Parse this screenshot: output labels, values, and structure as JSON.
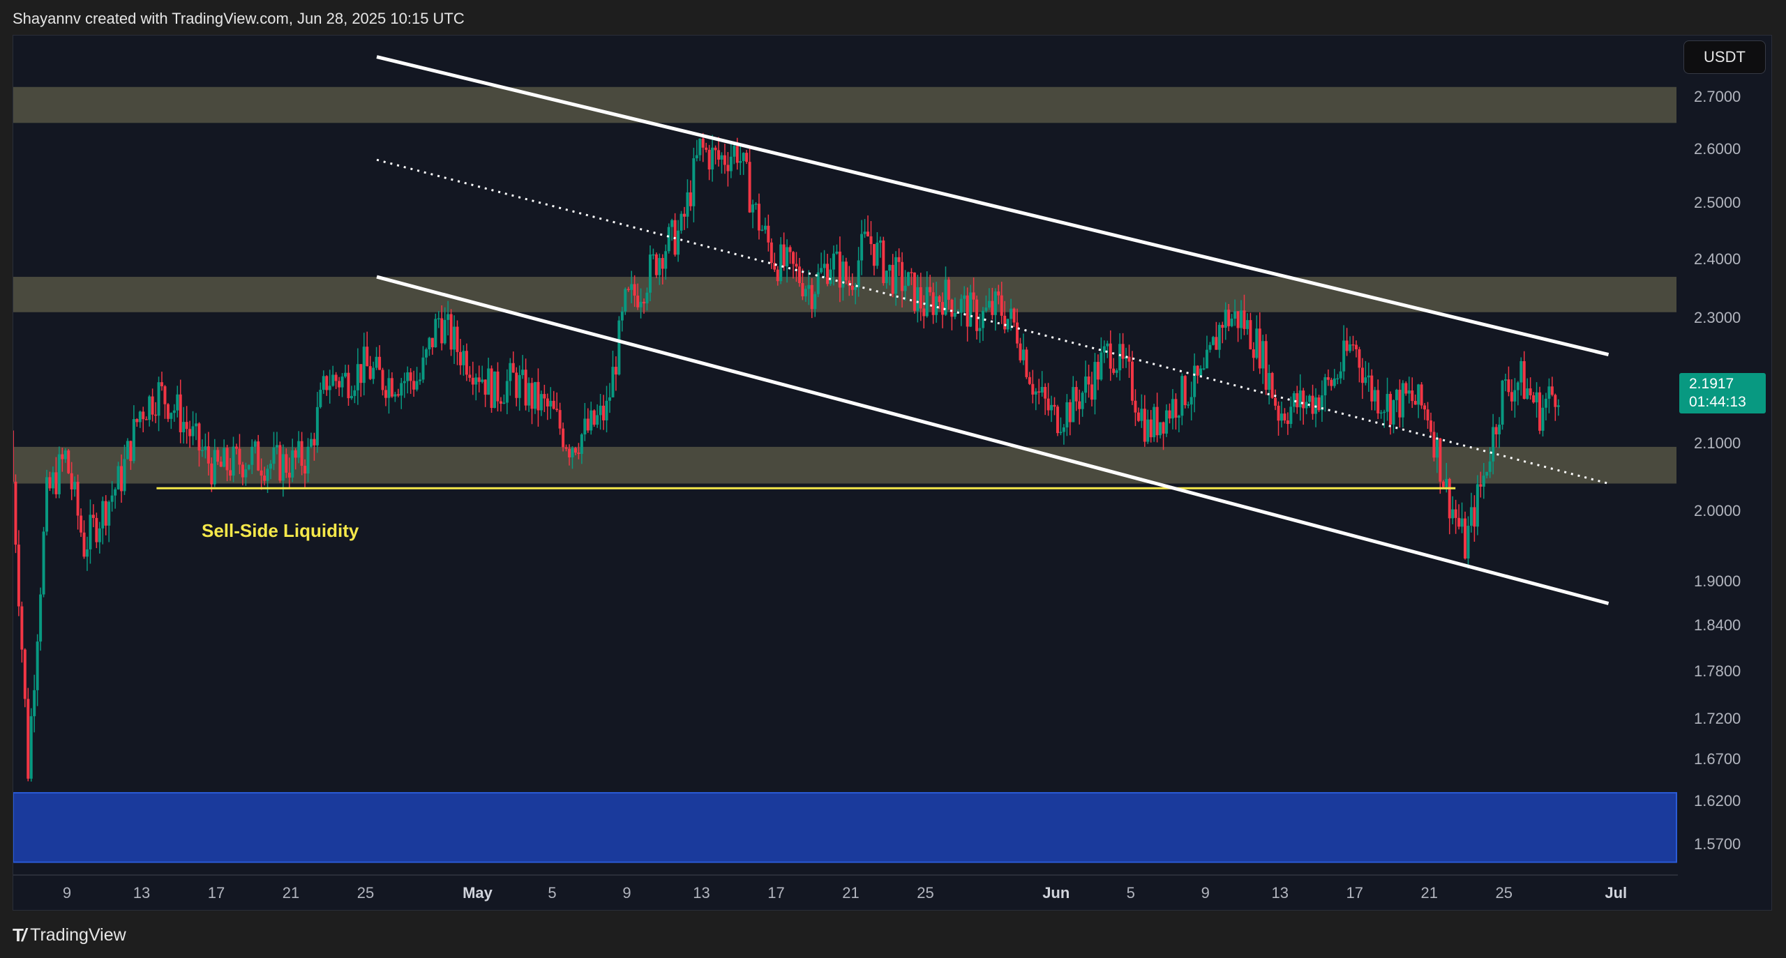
{
  "header": {
    "attribution": "Shayannv created with TradingView.com, Jun 28, 2025 10:15 UTC"
  },
  "footer": {
    "logo_text": "TradingView",
    "logo_mark": "TV"
  },
  "price_axis": {
    "unit": "USDT",
    "current_price": "2.1917",
    "countdown": "01:44:13"
  },
  "annotations": {
    "sell_side_label": "Sell-Side Liquidity"
  },
  "colors": {
    "up": "#089981",
    "down": "#f23645",
    "zone": "#4a4a3e",
    "demand_zone": "#1a3a9c",
    "liquidity_line": "#f5e84a",
    "channel": "#ffffff",
    "background": "#131722"
  },
  "chart_data": {
    "type": "candlestick",
    "title": "",
    "scale": "log",
    "ylim": [
      1.55,
      2.78
    ],
    "y_ticks": [
      "2.7000",
      "2.6000",
      "2.5000",
      "2.4000",
      "2.3000",
      "2.1000",
      "2.0000",
      "1.9000",
      "1.8400",
      "1.7800",
      "1.7200",
      "1.6700",
      "1.6200",
      "1.5700"
    ],
    "x_ticks": [
      {
        "label": "9",
        "day": 0
      },
      {
        "label": "13",
        "day": 4
      },
      {
        "label": "17",
        "day": 8
      },
      {
        "label": "21",
        "day": 12
      },
      {
        "label": "25",
        "day": 16
      },
      {
        "label": "May",
        "day": 22,
        "month": true
      },
      {
        "label": "5",
        "day": 26
      },
      {
        "label": "9",
        "day": 30
      },
      {
        "label": "13",
        "day": 34
      },
      {
        "label": "17",
        "day": 38
      },
      {
        "label": "21",
        "day": 42
      },
      {
        "label": "25",
        "day": 46
      },
      {
        "label": "Jun",
        "day": 53,
        "month": true
      },
      {
        "label": "5",
        "day": 57
      },
      {
        "label": "9",
        "day": 61
      },
      {
        "label": "13",
        "day": 65
      },
      {
        "label": "17",
        "day": 69
      },
      {
        "label": "21",
        "day": 73
      },
      {
        "label": "25",
        "day": 77
      },
      {
        "label": "Jul",
        "day": 83,
        "month": true
      }
    ],
    "x_note": "day index 0 = Apr 9, 2025; 4h candles",
    "daily_closes_from_apr6": [
      2.12,
      1.66,
      2.02,
      2.08,
      1.95,
      2.0,
      2.05,
      2.15,
      2.18,
      2.15,
      2.1,
      2.06,
      2.07,
      2.08,
      2.07,
      2.07,
      2.08,
      2.2,
      2.2,
      2.22,
      2.2,
      2.2,
      2.2,
      2.3,
      2.25,
      2.22,
      2.18,
      2.2,
      2.17,
      2.15,
      2.1,
      2.12,
      2.15,
      2.32,
      2.36,
      2.42,
      2.45,
      2.6,
      2.58,
      2.6,
      2.48,
      2.4,
      2.38,
      2.35,
      2.4,
      2.36,
      2.44,
      2.38,
      2.36,
      2.32,
      2.34,
      2.32,
      2.3,
      2.32,
      2.28,
      2.18,
      2.14,
      2.16,
      2.2,
      2.25,
      2.2,
      2.12,
      2.15,
      2.18,
      2.2,
      2.3,
      2.3,
      2.25,
      2.15,
      2.16,
      2.17,
      2.2,
      2.26,
      2.18,
      2.16,
      2.17,
      2.15,
      2.03,
      1.95,
      2.05,
      2.18,
      2.2,
      2.15,
      2.19
    ],
    "zones": [
      {
        "name": "resistance-zone-top",
        "from": 2.65,
        "to": 2.72
      },
      {
        "name": "resistance-zone-mid",
        "from": 2.31,
        "to": 2.37
      },
      {
        "name": "support-zone",
        "from": 2.04,
        "to": 2.095
      },
      {
        "name": "demand-zone",
        "from": 1.55,
        "to": 1.63
      }
    ],
    "sell_side_liquidity": {
      "price": 2.033,
      "from_day": 4.8,
      "to_day": 74.4
    },
    "channel": {
      "upper": [
        {
          "day": 16.6,
          "price": 2.78
        },
        {
          "day": 82.6,
          "price": 2.24
        }
      ],
      "middle": [
        {
          "day": 16.6,
          "price": 2.58
        },
        {
          "day": 82.6,
          "price": 2.04
        }
      ],
      "lower": [
        {
          "day": 16.6,
          "price": 2.37
        },
        {
          "day": 82.6,
          "price": 1.87
        }
      ]
    }
  }
}
